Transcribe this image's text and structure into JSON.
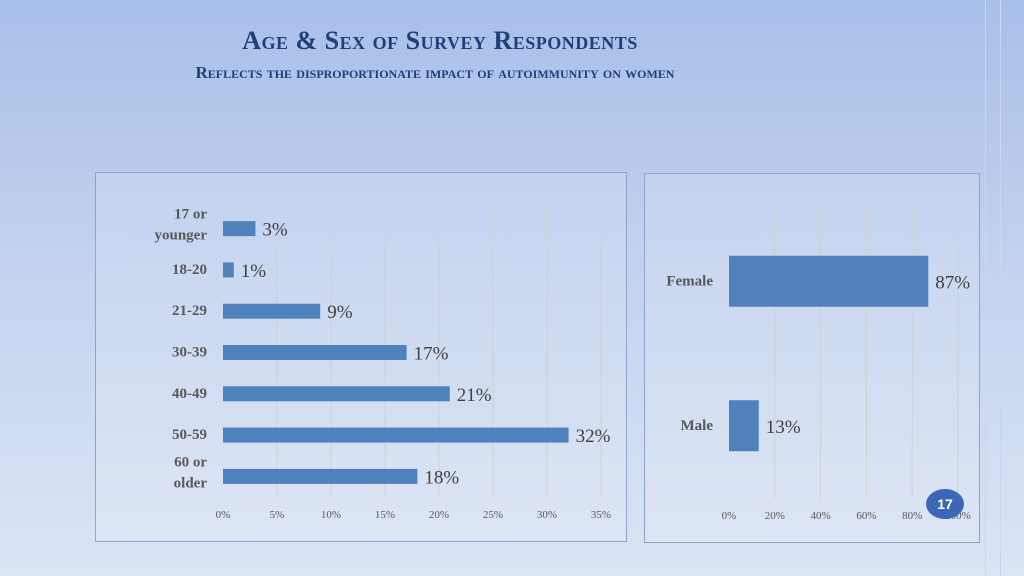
{
  "slide": {
    "title": "Age & Sex of Survey Respondents",
    "subtitle": "Reflects the disproportionate impact of autoimmunity on women",
    "page_number": "17"
  },
  "colors": {
    "bar": "#4f81bd",
    "text": "#595959",
    "grid": "#d0d0d0",
    "title": "#1f3f7a"
  },
  "chart_data": [
    {
      "type": "bar",
      "orientation": "horizontal",
      "categories": [
        "17 or younger",
        "18-20",
        "21-29",
        "30-39",
        "40-49",
        "50-59",
        "60 or older"
      ],
      "values": [
        3,
        1,
        9,
        17,
        21,
        32,
        18
      ],
      "value_labels": [
        "3%",
        "1%",
        "9%",
        "17%",
        "21%",
        "32%",
        "18%"
      ],
      "xticks": [
        "0%",
        "5%",
        "10%",
        "15%",
        "20%",
        "25%",
        "30%",
        "35%"
      ],
      "xlim": [
        0,
        35
      ],
      "title": "",
      "xlabel": "",
      "ylabel": "",
      "grid": true
    },
    {
      "type": "bar",
      "orientation": "horizontal",
      "categories": [
        "Female",
        "Male"
      ],
      "values": [
        87,
        13
      ],
      "value_labels": [
        "87%",
        "13%"
      ],
      "xticks": [
        "0%",
        "20%",
        "40%",
        "60%",
        "80%",
        "100%"
      ],
      "xlim": [
        0,
        100
      ],
      "title": "",
      "xlabel": "",
      "ylabel": "",
      "grid": true
    }
  ]
}
